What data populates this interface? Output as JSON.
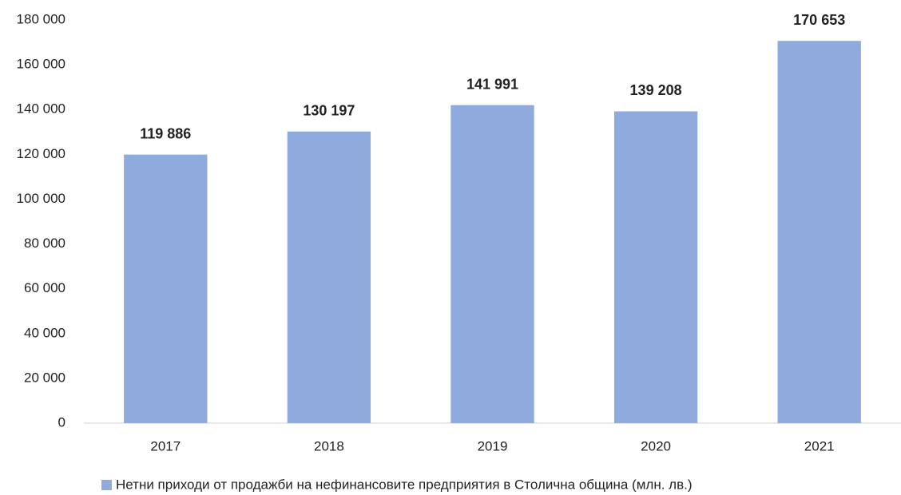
{
  "chart_data": {
    "type": "bar",
    "categories": [
      "2017",
      "2018",
      "2019",
      "2020",
      "2021"
    ],
    "series": [
      {
        "name": "Нетни приходи от продажби на нефинансовите предприятия в Столична община (млн. лв.)",
        "color": "#8faadc",
        "values": [
          119886,
          130197,
          141991,
          139208,
          170653
        ],
        "value_labels": [
          "119 886",
          "130 197",
          "141 991",
          "139 208",
          "170 653"
        ]
      }
    ],
    "ylim": [
      0,
      180000
    ],
    "yticks": [
      0,
      {
        "value": 20000,
        "label": "20 000"
      },
      {
        "value": 40000,
        "label": "40 000"
      },
      {
        "value": 60000,
        "label": "60 000"
      },
      {
        "value": 80000,
        "label": "80 000"
      },
      {
        "value": 100000,
        "label": "100 000"
      },
      {
        "value": 120000,
        "label": "120 000"
      },
      {
        "value": 140000,
        "label": "140 000"
      },
      {
        "value": 160000,
        "label": "160 000"
      },
      {
        "value": 180000,
        "label": "180 000"
      }
    ],
    "grid": false,
    "legend": "bottom"
  }
}
